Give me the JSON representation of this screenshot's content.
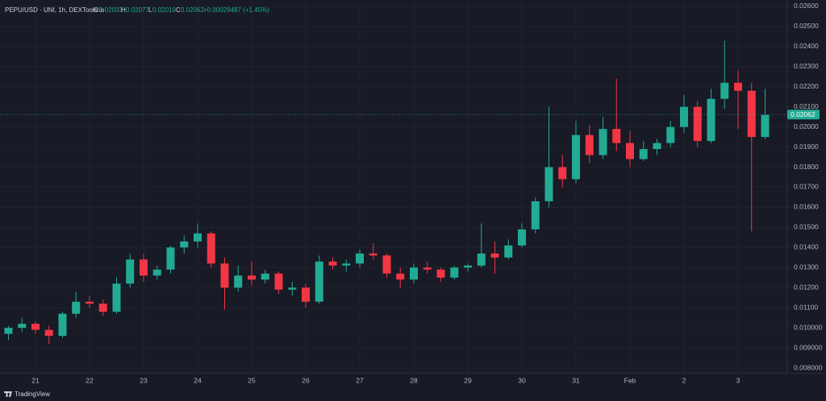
{
  "header": {
    "symbol": "PEPU/USD · UNI, 1h, DEXTools.io",
    "open_label": "O",
    "open": "0.02033",
    "high_label": "H",
    "high": "0.02077",
    "low_label": "L",
    "low": "0.02019",
    "close_label": "C",
    "close": "0.02062",
    "change": "+0.00029487 (+1.45%)"
  },
  "brand": "TradingView",
  "chart_data": {
    "type": "candlestick",
    "up_color": "#22ab94",
    "down_color": "#f23645",
    "grid": true,
    "last_price": 0.02062,
    "categories": [
      null,
      null,
      "21",
      null,
      null,
      null,
      "22",
      null,
      null,
      null,
      "23",
      null,
      null,
      null,
      "24",
      null,
      null,
      null,
      "25",
      null,
      null,
      null,
      "26",
      null,
      null,
      null,
      "27",
      null,
      null,
      null,
      "28",
      null,
      null,
      null,
      "29",
      null,
      null,
      null,
      "30",
      null,
      null,
      null,
      "31",
      null,
      null,
      null,
      "Feb",
      null,
      null,
      null,
      "2",
      null,
      null,
      null,
      "3",
      null,
      null
    ],
    "open": [
      0.0097,
      0.01,
      0.0102,
      0.0099,
      0.0096,
      0.0107,
      0.0113,
      0.0112,
      0.0108,
      0.0122,
      0.0134,
      0.0126,
      0.0129,
      0.014,
      0.0143,
      0.0147,
      0.0132,
      0.012,
      0.0126,
      0.0124,
      0.0127,
      0.0119,
      0.012,
      0.0113,
      0.0133,
      0.0131,
      0.0132,
      0.0137,
      0.0136,
      0.0127,
      0.0124,
      0.013,
      0.0129,
      0.0125,
      0.013,
      0.0131,
      0.0137,
      0.0135,
      0.0141,
      0.0149,
      0.0163,
      0.018,
      0.0174,
      0.0196,
      0.0186,
      0.0199,
      0.0192,
      0.0184,
      0.0189,
      0.0192,
      0.02,
      0.021,
      0.0193,
      0.0214,
      0.0222,
      0.0218,
      0.0195
    ],
    "high": [
      0.0101,
      0.0105,
      0.0103,
      0.0101,
      0.0108,
      0.0118,
      0.0116,
      0.0114,
      0.0125,
      0.0137,
      0.0137,
      0.0131,
      0.0141,
      0.0146,
      0.0152,
      0.0148,
      0.0135,
      0.0131,
      0.0133,
      0.0129,
      0.0128,
      0.0123,
      0.0122,
      0.0136,
      0.0135,
      0.0134,
      0.0139,
      0.0142,
      0.0137,
      0.013,
      0.0132,
      0.0133,
      0.013,
      0.0131,
      0.0132,
      0.0152,
      0.0143,
      0.0144,
      0.0152,
      0.0165,
      0.021,
      0.0186,
      0.0203,
      0.0201,
      0.0205,
      0.0224,
      0.0198,
      0.0193,
      0.0194,
      0.0203,
      0.0216,
      0.0213,
      0.0219,
      0.0243,
      0.0228,
      0.0222,
      0.0219
    ],
    "low": [
      0.0094,
      0.0098,
      0.0097,
      0.0092,
      0.0095,
      0.0105,
      0.011,
      0.0106,
      0.0107,
      0.012,
      0.0123,
      0.0124,
      0.0127,
      0.0137,
      0.014,
      0.013,
      0.0109,
      0.0118,
      0.0121,
      0.0122,
      0.0117,
      0.0116,
      0.011,
      0.0112,
      0.0129,
      0.0128,
      0.013,
      0.0134,
      0.0125,
      0.012,
      0.0122,
      0.0127,
      0.0123,
      0.0124,
      0.0128,
      0.013,
      0.0127,
      0.0134,
      0.014,
      0.0147,
      0.016,
      0.017,
      0.0172,
      0.0182,
      0.0184,
      0.0188,
      0.018,
      0.0183,
      0.0186,
      0.019,
      0.0197,
      0.019,
      0.0192,
      0.0209,
      0.0199,
      0.0148,
      0.0194
    ],
    "close": [
      0.01,
      0.0102,
      0.0099,
      0.0096,
      0.0107,
      0.0113,
      0.0112,
      0.0108,
      0.0122,
      0.0134,
      0.0126,
      0.0129,
      0.014,
      0.0143,
      0.0147,
      0.0132,
      0.012,
      0.0126,
      0.0124,
      0.0127,
      0.0119,
      0.012,
      0.0113,
      0.0133,
      0.0131,
      0.0132,
      0.0137,
      0.0136,
      0.0127,
      0.0124,
      0.013,
      0.0129,
      0.0125,
      0.013,
      0.0131,
      0.0137,
      0.0135,
      0.0141,
      0.0149,
      0.0163,
      0.018,
      0.0174,
      0.0196,
      0.0186,
      0.0199,
      0.0192,
      0.0184,
      0.0189,
      0.0192,
      0.02,
      0.021,
      0.0193,
      0.0214,
      0.0222,
      0.0218,
      0.0195,
      0.0206
    ],
    "ylim": [
      0.00776,
      0.02632
    ],
    "yticks": [
      {
        "value": 0.008,
        "label": "0.008000"
      },
      {
        "value": 0.009,
        "label": "0.009000"
      },
      {
        "value": 0.01,
        "label": "0.010000"
      },
      {
        "value": 0.011,
        "label": "0.01100"
      },
      {
        "value": 0.012,
        "label": "0.01200"
      },
      {
        "value": 0.013,
        "label": "0.01300"
      },
      {
        "value": 0.014,
        "label": "0.01400"
      },
      {
        "value": 0.015,
        "label": "0.01500"
      },
      {
        "value": 0.016,
        "label": "0.01600"
      },
      {
        "value": 0.017,
        "label": "0.01700"
      },
      {
        "value": 0.018,
        "label": "0.01800"
      },
      {
        "value": 0.019,
        "label": "0.01900"
      },
      {
        "value": 0.02,
        "label": "0.02000"
      },
      {
        "value": 0.021,
        "label": "0.02100"
      },
      {
        "value": 0.022,
        "label": "0.02200"
      },
      {
        "value": 0.023,
        "label": "0.02300"
      },
      {
        "value": 0.024,
        "label": "0.02400"
      },
      {
        "value": 0.025,
        "label": "0.02500"
      },
      {
        "value": 0.026,
        "label": "0.02600"
      }
    ]
  }
}
